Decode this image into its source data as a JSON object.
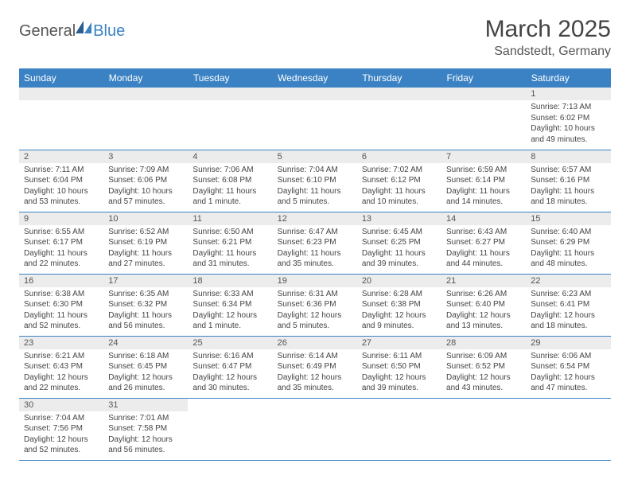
{
  "logo": {
    "general": "General",
    "blue": "Blue"
  },
  "title": "March 2025",
  "location": "Sandstedt, Germany",
  "colors": {
    "header_bg": "#3b82c4",
    "header_text": "#ffffff",
    "daynum_bg": "#ececec",
    "cell_border": "#3b82c4",
    "body_text": "#444444",
    "logo_blue": "#3b82c4",
    "logo_gray": "#555555"
  },
  "columns": [
    "Sunday",
    "Monday",
    "Tuesday",
    "Wednesday",
    "Thursday",
    "Friday",
    "Saturday"
  ],
  "weeks": [
    [
      null,
      null,
      null,
      null,
      null,
      null,
      {
        "n": "1",
        "sr": "Sunrise: 7:13 AM",
        "ss": "Sunset: 6:02 PM",
        "d1": "Daylight: 10 hours",
        "d2": "and 49 minutes."
      }
    ],
    [
      {
        "n": "2",
        "sr": "Sunrise: 7:11 AM",
        "ss": "Sunset: 6:04 PM",
        "d1": "Daylight: 10 hours",
        "d2": "and 53 minutes."
      },
      {
        "n": "3",
        "sr": "Sunrise: 7:09 AM",
        "ss": "Sunset: 6:06 PM",
        "d1": "Daylight: 10 hours",
        "d2": "and 57 minutes."
      },
      {
        "n": "4",
        "sr": "Sunrise: 7:06 AM",
        "ss": "Sunset: 6:08 PM",
        "d1": "Daylight: 11 hours",
        "d2": "and 1 minute."
      },
      {
        "n": "5",
        "sr": "Sunrise: 7:04 AM",
        "ss": "Sunset: 6:10 PM",
        "d1": "Daylight: 11 hours",
        "d2": "and 5 minutes."
      },
      {
        "n": "6",
        "sr": "Sunrise: 7:02 AM",
        "ss": "Sunset: 6:12 PM",
        "d1": "Daylight: 11 hours",
        "d2": "and 10 minutes."
      },
      {
        "n": "7",
        "sr": "Sunrise: 6:59 AM",
        "ss": "Sunset: 6:14 PM",
        "d1": "Daylight: 11 hours",
        "d2": "and 14 minutes."
      },
      {
        "n": "8",
        "sr": "Sunrise: 6:57 AM",
        "ss": "Sunset: 6:16 PM",
        "d1": "Daylight: 11 hours",
        "d2": "and 18 minutes."
      }
    ],
    [
      {
        "n": "9",
        "sr": "Sunrise: 6:55 AM",
        "ss": "Sunset: 6:17 PM",
        "d1": "Daylight: 11 hours",
        "d2": "and 22 minutes."
      },
      {
        "n": "10",
        "sr": "Sunrise: 6:52 AM",
        "ss": "Sunset: 6:19 PM",
        "d1": "Daylight: 11 hours",
        "d2": "and 27 minutes."
      },
      {
        "n": "11",
        "sr": "Sunrise: 6:50 AM",
        "ss": "Sunset: 6:21 PM",
        "d1": "Daylight: 11 hours",
        "d2": "and 31 minutes."
      },
      {
        "n": "12",
        "sr": "Sunrise: 6:47 AM",
        "ss": "Sunset: 6:23 PM",
        "d1": "Daylight: 11 hours",
        "d2": "and 35 minutes."
      },
      {
        "n": "13",
        "sr": "Sunrise: 6:45 AM",
        "ss": "Sunset: 6:25 PM",
        "d1": "Daylight: 11 hours",
        "d2": "and 39 minutes."
      },
      {
        "n": "14",
        "sr": "Sunrise: 6:43 AM",
        "ss": "Sunset: 6:27 PM",
        "d1": "Daylight: 11 hours",
        "d2": "and 44 minutes."
      },
      {
        "n": "15",
        "sr": "Sunrise: 6:40 AM",
        "ss": "Sunset: 6:29 PM",
        "d1": "Daylight: 11 hours",
        "d2": "and 48 minutes."
      }
    ],
    [
      {
        "n": "16",
        "sr": "Sunrise: 6:38 AM",
        "ss": "Sunset: 6:30 PM",
        "d1": "Daylight: 11 hours",
        "d2": "and 52 minutes."
      },
      {
        "n": "17",
        "sr": "Sunrise: 6:35 AM",
        "ss": "Sunset: 6:32 PM",
        "d1": "Daylight: 11 hours",
        "d2": "and 56 minutes."
      },
      {
        "n": "18",
        "sr": "Sunrise: 6:33 AM",
        "ss": "Sunset: 6:34 PM",
        "d1": "Daylight: 12 hours",
        "d2": "and 1 minute."
      },
      {
        "n": "19",
        "sr": "Sunrise: 6:31 AM",
        "ss": "Sunset: 6:36 PM",
        "d1": "Daylight: 12 hours",
        "d2": "and 5 minutes."
      },
      {
        "n": "20",
        "sr": "Sunrise: 6:28 AM",
        "ss": "Sunset: 6:38 PM",
        "d1": "Daylight: 12 hours",
        "d2": "and 9 minutes."
      },
      {
        "n": "21",
        "sr": "Sunrise: 6:26 AM",
        "ss": "Sunset: 6:40 PM",
        "d1": "Daylight: 12 hours",
        "d2": "and 13 minutes."
      },
      {
        "n": "22",
        "sr": "Sunrise: 6:23 AM",
        "ss": "Sunset: 6:41 PM",
        "d1": "Daylight: 12 hours",
        "d2": "and 18 minutes."
      }
    ],
    [
      {
        "n": "23",
        "sr": "Sunrise: 6:21 AM",
        "ss": "Sunset: 6:43 PM",
        "d1": "Daylight: 12 hours",
        "d2": "and 22 minutes."
      },
      {
        "n": "24",
        "sr": "Sunrise: 6:18 AM",
        "ss": "Sunset: 6:45 PM",
        "d1": "Daylight: 12 hours",
        "d2": "and 26 minutes."
      },
      {
        "n": "25",
        "sr": "Sunrise: 6:16 AM",
        "ss": "Sunset: 6:47 PM",
        "d1": "Daylight: 12 hours",
        "d2": "and 30 minutes."
      },
      {
        "n": "26",
        "sr": "Sunrise: 6:14 AM",
        "ss": "Sunset: 6:49 PM",
        "d1": "Daylight: 12 hours",
        "d2": "and 35 minutes."
      },
      {
        "n": "27",
        "sr": "Sunrise: 6:11 AM",
        "ss": "Sunset: 6:50 PM",
        "d1": "Daylight: 12 hours",
        "d2": "and 39 minutes."
      },
      {
        "n": "28",
        "sr": "Sunrise: 6:09 AM",
        "ss": "Sunset: 6:52 PM",
        "d1": "Daylight: 12 hours",
        "d2": "and 43 minutes."
      },
      {
        "n": "29",
        "sr": "Sunrise: 6:06 AM",
        "ss": "Sunset: 6:54 PM",
        "d1": "Daylight: 12 hours",
        "d2": "and 47 minutes."
      }
    ],
    [
      {
        "n": "30",
        "sr": "Sunrise: 7:04 AM",
        "ss": "Sunset: 7:56 PM",
        "d1": "Daylight: 12 hours",
        "d2": "and 52 minutes."
      },
      {
        "n": "31",
        "sr": "Sunrise: 7:01 AM",
        "ss": "Sunset: 7:58 PM",
        "d1": "Daylight: 12 hours",
        "d2": "and 56 minutes."
      },
      null,
      null,
      null,
      null,
      null
    ]
  ]
}
